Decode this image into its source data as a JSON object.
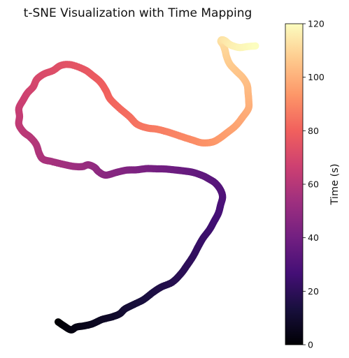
{
  "chart_data": {
    "type": "scatter",
    "title": "t-SNE Visualization with Time Mapping",
    "xlabel": "",
    "ylabel": "",
    "axes_visible": false,
    "colormap": "magma",
    "colormap_stops": [
      "#000004",
      "#180f3d",
      "#440f76",
      "#721f81",
      "#9e2f7f",
      "#cd4071",
      "#f1605d",
      "#fd9668",
      "#feca8d",
      "#fcfdbf"
    ],
    "x": [
      -3.56,
      -3.39,
      -3.16,
      -2.99,
      -2.75,
      -2.49,
      -2.19,
      -1.86,
      -1.63,
      -1.47,
      -1.23,
      -0.89,
      -0.59,
      -0.33,
      0.01,
      0.28,
      0.48,
      0.67,
      0.83,
      0.98,
      1.18,
      1.33,
      1.46,
      1.53,
      1.59,
      1.52,
      1.36,
      1.17,
      0.97,
      0.66,
      0.38,
      0.11,
      -0.21,
      -0.52,
      -0.78,
      -1.1,
      -1.42,
      -1.73,
      -2.07,
      -2.29,
      -2.42,
      -2.62,
      -2.8,
      -3.07,
      -3.39,
      -3.77,
      -4.03,
      -4.15,
      -4.25,
      -4.44,
      -4.64,
      -4.79,
      -4.77,
      -4.79,
      -4.66,
      -4.52,
      -4.34,
      -4.23,
      -4.01,
      -3.72,
      -3.47,
      -3.15,
      -2.73,
      -2.48,
      -2.24,
      -2.06,
      -1.93,
      -1.64,
      -1.33,
      -1.09,
      -0.77,
      -0.47,
      -0.09,
      0.3,
      0.65,
      0.95,
      1.27,
      1.49,
      1.73,
      2.0,
      2.22,
      2.4,
      2.41,
      2.39,
      2.36,
      2.22,
      2.02,
      1.82,
      1.72,
      1.67,
      1.61,
      1.54,
      1.57,
      1.67,
      1.78,
      1.92,
      2.13,
      2.37,
      2.62
    ],
    "y": [
      -3.8,
      -3.99,
      -4.2,
      -4.06,
      -4.0,
      -3.9,
      -3.68,
      -3.54,
      -3.39,
      -3.15,
      -2.95,
      -2.68,
      -2.31,
      -2.04,
      -1.8,
      -1.38,
      -0.94,
      -0.48,
      0.01,
      0.43,
      0.86,
      1.29,
      1.69,
      2.11,
      2.51,
      2.88,
      3.21,
      3.41,
      3.58,
      3.75,
      3.82,
      3.87,
      3.92,
      3.93,
      3.94,
      3.88,
      3.86,
      3.75,
      3.61,
      3.78,
      4.0,
      4.13,
      4.04,
      4.05,
      4.15,
      4.3,
      4.41,
      4.69,
      5.16,
      5.53,
      5.78,
      6.16,
      6.58,
      6.99,
      7.39,
      7.76,
      8.07,
      8.44,
      8.71,
      8.89,
      9.15,
      9.18,
      8.93,
      8.64,
      8.31,
      7.87,
      7.45,
      6.99,
      6.57,
      6.18,
      5.99,
      5.93,
      5.77,
      5.56,
      5.38,
      5.24,
      5.28,
      5.46,
      5.75,
      6.1,
      6.54,
      6.97,
      7.36,
      7.76,
      8.16,
      8.54,
      8.86,
      9.21,
      9.57,
      9.9,
      10.18,
      10.35,
      10.44,
      10.39,
      10.24,
      10.13,
      10.05,
      10.1,
      10.13
    ],
    "xlim": [
      -4.9,
      2.9
    ],
    "ylim": [
      -4.6,
      10.9
    ],
    "color_dimension": "time",
    "time_range": [
      0,
      120
    ],
    "colorbar": {
      "label": "Time (s)",
      "ticks": [
        0,
        20,
        40,
        60,
        80,
        100,
        120
      ],
      "tick_labels": [
        "0",
        "20",
        "40",
        "60",
        "80",
        "100",
        "120"
      ],
      "range": [
        0,
        120
      ]
    },
    "grid": false,
    "legend": "none"
  }
}
